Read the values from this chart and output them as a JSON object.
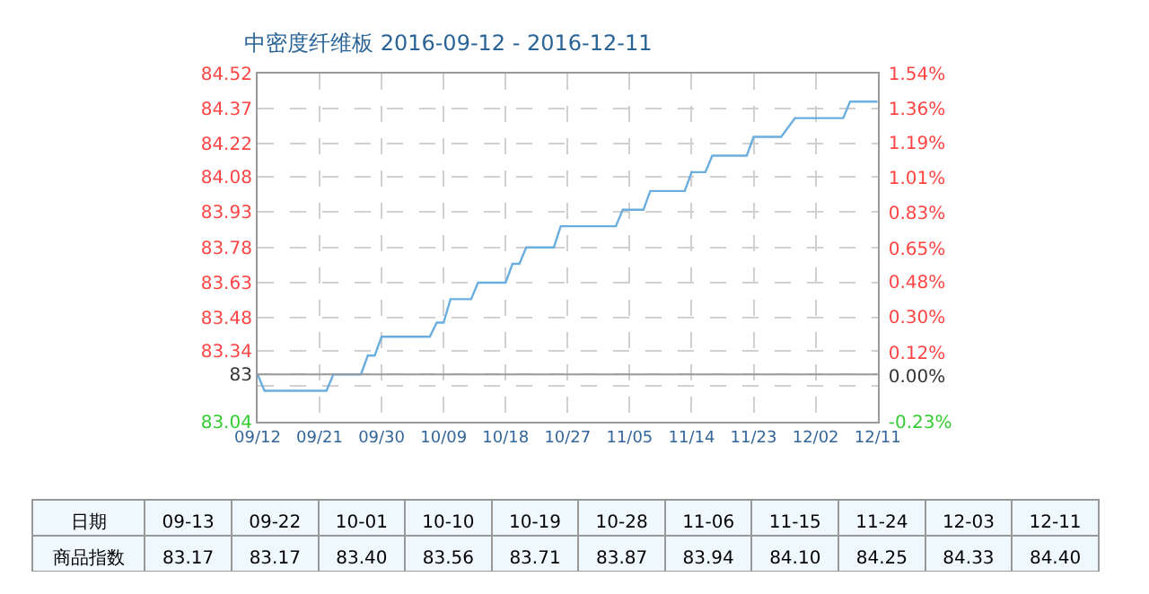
{
  "chart_data": [
    {
      "type": "line",
      "title": "中密度纤维板 2016-09-12 - 2016-12-11",
      "x": [
        "2016-09-12",
        "2016-09-13",
        "2016-09-22",
        "2016-09-23",
        "2016-09-27",
        "2016-09-28",
        "2016-09-29",
        "2016-09-30",
        "2016-10-07",
        "2016-10-08",
        "2016-10-09",
        "2016-10-10",
        "2016-10-13",
        "2016-10-14",
        "2016-10-18",
        "2016-10-19",
        "2016-10-20",
        "2016-10-21",
        "2016-10-25",
        "2016-10-26",
        "2016-11-03",
        "2016-11-04",
        "2016-11-07",
        "2016-11-08",
        "2016-11-13",
        "2016-11-14",
        "2016-11-16",
        "2016-11-17",
        "2016-11-22",
        "2016-11-23",
        "2016-11-27",
        "2016-11-29",
        "2016-12-06",
        "2016-12-07",
        "2016-12-11"
      ],
      "series": [
        {
          "color": "#6aaee0",
          "values": [
            83.24,
            83.17,
            83.17,
            83.24,
            83.24,
            83.32,
            83.32,
            83.4,
            83.4,
            83.46,
            83.46,
            83.56,
            83.56,
            83.63,
            83.63,
            83.71,
            83.71,
            83.78,
            83.78,
            83.87,
            83.87,
            83.94,
            83.94,
            84.02,
            84.02,
            84.1,
            84.1,
            84.17,
            84.17,
            84.25,
            84.25,
            84.33,
            84.33,
            84.4,
            84.4
          ]
        }
      ],
      "xlim": [
        "2016-09-12",
        "2016-12-11"
      ],
      "xticks": [
        {
          "value": "2016-09-12",
          "label": "09/12"
        },
        {
          "value": "2016-09-21",
          "label": "09/21"
        },
        {
          "value": "2016-09-30",
          "label": "09/30"
        },
        {
          "value": "2016-10-09",
          "label": "10/09"
        },
        {
          "value": "2016-10-18",
          "label": "10/18"
        },
        {
          "value": "2016-10-27",
          "label": "10/27"
        },
        {
          "value": "2016-11-05",
          "label": "11/05"
        },
        {
          "value": "2016-11-14",
          "label": "11/14"
        },
        {
          "value": "2016-11-23",
          "label": "11/23"
        },
        {
          "value": "2016-12-02",
          "label": "12/02"
        },
        {
          "value": "2016-12-11",
          "label": "12/11"
        }
      ],
      "ylim": [
        83.04,
        84.52
      ],
      "yticks": [
        83.04,
        {
          "value": 83.19,
          "label": null
        },
        {
          "value": 83.24,
          "label": "83"
        },
        83.34,
        83.48,
        83.63,
        83.78,
        83.93,
        84.08,
        84.22,
        84.37,
        84.52
      ],
      "y2lim": [
        -0.23,
        1.54
      ],
      "y2ticks": [
        {
          "value": -0.23,
          "label": "-0.23%"
        },
        {
          "value": 0.0,
          "label": "0.00%"
        },
        {
          "value": 0.12,
          "label": "0.12%"
        },
        {
          "value": 0.3,
          "label": "0.30%"
        },
        {
          "value": 0.48,
          "label": "0.48%"
        },
        {
          "value": 0.65,
          "label": "0.65%"
        },
        {
          "value": 0.83,
          "label": "0.83%"
        },
        {
          "value": 1.01,
          "label": "1.01%"
        },
        {
          "value": 1.19,
          "label": "1.19%"
        },
        {
          "value": 1.36,
          "label": "1.36%"
        },
        {
          "value": 1.54,
          "label": "1.54%"
        }
      ],
      "ref_lines": [
        {
          "axis": "y",
          "value": 83.24,
          "color": "#999999"
        }
      ],
      "grid": true,
      "marker": "none",
      "line_style": "solid"
    },
    {
      "type": "other",
      "y_categories": [
        "日期",
        "商品指数"
      ],
      "categories": [
        "09-13",
        "09-22",
        "10-01",
        "10-10",
        "10-19",
        "10-28",
        "11-06",
        "11-15",
        "11-24",
        "12-03",
        "12-11"
      ],
      "values": [
        83.17,
        83.17,
        83.4,
        83.56,
        83.71,
        83.87,
        83.94,
        84.1,
        84.25,
        84.33,
        84.4
      ],
      "value_labels": [
        "83.17",
        "83.17",
        "83.40",
        "83.56",
        "83.71",
        "83.87",
        "83.94",
        "84.10",
        "84.25",
        "84.33",
        "84.40"
      ]
    }
  ]
}
